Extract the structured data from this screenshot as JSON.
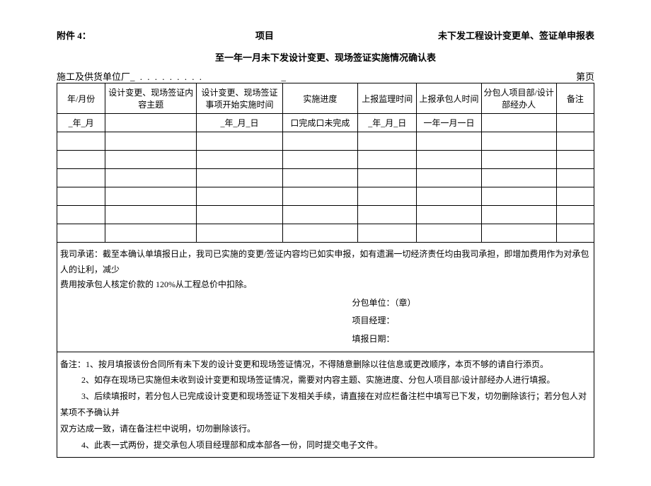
{
  "header": {
    "attachment": "附件 4：",
    "project_label": "项目",
    "title_right": "未下发工程设计变更单、签证单申报表"
  },
  "subtitle": "至一年一月未下发设计变更、现场签证实施情况确认表",
  "aboveTable": {
    "unit_label": "施工及供货单位厂",
    "dots": "_ . . . . . . . . .",
    "underscore_trail": "_",
    "page_label": "第页"
  },
  "tableHeaders": {
    "ym": "年/月份",
    "topic": "设计变更、现场签证内容主题",
    "start": "设计变更、现场签证事项开始实施时间",
    "progress": "实施进度",
    "supervise": "上报监理时间",
    "contractor": "上报承包人时间",
    "handler": "分包人项目部/设计部经办人",
    "remark": "备注"
  },
  "row1": {
    "ym": "_年_月",
    "topic": "",
    "start": "_年_月_日",
    "progress": "口完成口未完成",
    "supervise": "_年_月_日",
    "contractor": "一年一月一日",
    "handler": "",
    "remark": ""
  },
  "commitment": {
    "line1": "我司承诺：截至本确认单填报日止，我司已实施的变更/签证内容均已如实申报，如有遗漏一切经济责任均由我司承担，即增加费用作为对承包人的让利，减少",
    "line2": "费用按承包人核定价款的 120%从工程总价中扣除。",
    "sig1": "分包单位：（章）",
    "sig2": "项目经理：",
    "sig3": "填报日期："
  },
  "notes": {
    "label": "备注：",
    "n1": "1、按月填报该份合同所有未下发的设计变更和现场签证情况，不得随意删除以往信息或更改顺序，本页不够的请自行添页。",
    "n2": "2、如存在现场已实施但未收到设计变更和现场签证情况，需要对内容主题、实施进度、分包人项目部/设计部经办人进行填报。",
    "n3a": "3、后续填报时，若分包人已完成设计变更和现场签证下发相关手续，请直接在对应栏备注栏中填写已下发，切勿删除该行；若分包人对某项不予确认并",
    "n3b": "双方达成一致，请在备注栏中说明，切勿删除该行。",
    "n4": "4、此表一式两份，提交承包人项目经理部和成本部各一份，同时提交电子文件。"
  }
}
